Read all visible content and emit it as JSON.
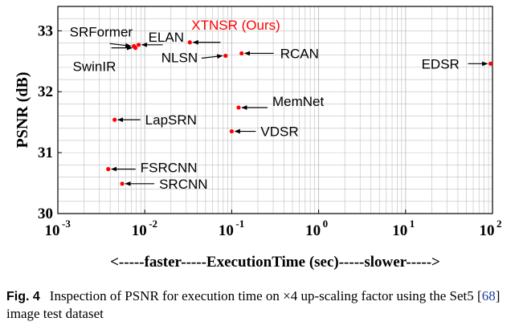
{
  "chart_data": {
    "type": "scatter",
    "xscale": "log",
    "xlim": [
      0.001,
      100
    ],
    "ylim": [
      30,
      33.4
    ],
    "grid": true,
    "ylabel": "PSNR (dB)",
    "xlabel": "<-----faster-----ExecutionTime (sec)-----slower----->",
    "x_ticks": [
      {
        "value": 0.001,
        "base": "10",
        "exp": "-3"
      },
      {
        "value": 0.01,
        "base": "10",
        "exp": "-2"
      },
      {
        "value": 0.1,
        "base": "10",
        "exp": "-1"
      },
      {
        "value": 1,
        "base": "10",
        "exp": "0"
      },
      {
        "value": 10,
        "base": "10",
        "exp": "1"
      },
      {
        "value": 100,
        "base": "10",
        "exp": "2"
      }
    ],
    "y_ticks": [
      {
        "value": 30,
        "label": "30"
      },
      {
        "value": 31,
        "label": "31"
      },
      {
        "value": 32,
        "label": "32"
      },
      {
        "value": 33,
        "label": "33"
      }
    ],
    "points": [
      {
        "name": "SRFormer",
        "x": 0.0075,
        "y": 32.75,
        "highlight": false
      },
      {
        "name": "ELAN",
        "x": 0.0085,
        "y": 32.77,
        "highlight": false
      },
      {
        "name": "SwinIR",
        "x": 0.0078,
        "y": 32.72,
        "highlight": false
      },
      {
        "name": "XTNSR (Ours)",
        "x": 0.033,
        "y": 32.81,
        "highlight": true
      },
      {
        "name": "NLSN",
        "x": 0.085,
        "y": 32.59,
        "highlight": false
      },
      {
        "name": "RCAN",
        "x": 0.13,
        "y": 32.63,
        "highlight": false
      },
      {
        "name": "EDSR",
        "x": 95,
        "y": 32.46,
        "highlight": false
      },
      {
        "name": "MemNet",
        "x": 0.12,
        "y": 31.74,
        "highlight": false
      },
      {
        "name": "LapSRN",
        "x": 0.0045,
        "y": 31.54,
        "highlight": false
      },
      {
        "name": "VDSR",
        "x": 0.1,
        "y": 31.35,
        "highlight": false
      },
      {
        "name": "FSRCNN",
        "x": 0.0038,
        "y": 30.73,
        "highlight": false
      },
      {
        "name": "SRCNN",
        "x": 0.0055,
        "y": 30.49,
        "highlight": false
      }
    ],
    "colors": {
      "marker": "#ff0000",
      "highlight_text": "#ff0000",
      "text": "#000000",
      "grid": "#bfbfbf",
      "arrow": "#000000"
    }
  },
  "caption": {
    "fig_label": "Fig. 4",
    "text_before": "Inspection of PSNR for execution time on ",
    "times": "×",
    "text_after": "4 up-scaling factor using the Set5 [",
    "ref": "68",
    "text_end": "] image test dataset"
  }
}
